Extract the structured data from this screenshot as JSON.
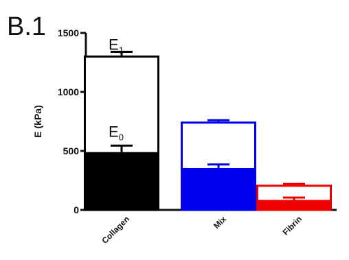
{
  "panel_label": "B.1",
  "chart_data": {
    "type": "bar",
    "ylabel": "E  (kPa)",
    "ylim": [
      0,
      1500
    ],
    "yticks": [
      0,
      500,
      1000,
      1500
    ],
    "categories": [
      "Collagen",
      "Mix",
      "Fibrin"
    ],
    "colors": [
      "#000000",
      "#0000ee",
      "#ee0000"
    ],
    "series": [
      {
        "name": "E0",
        "values": [
          490,
          355,
          85
        ],
        "errors": [
          55,
          30,
          20
        ]
      },
      {
        "name": "E1",
        "values": [
          1300,
          740,
          205
        ],
        "errors": [
          40,
          20,
          15
        ]
      }
    ],
    "annotations": [
      {
        "base": "E",
        "sub": "1",
        "category": "Collagen",
        "y": 1300
      },
      {
        "base": "E",
        "sub": "0",
        "category": "Collagen",
        "y": 490
      }
    ]
  }
}
